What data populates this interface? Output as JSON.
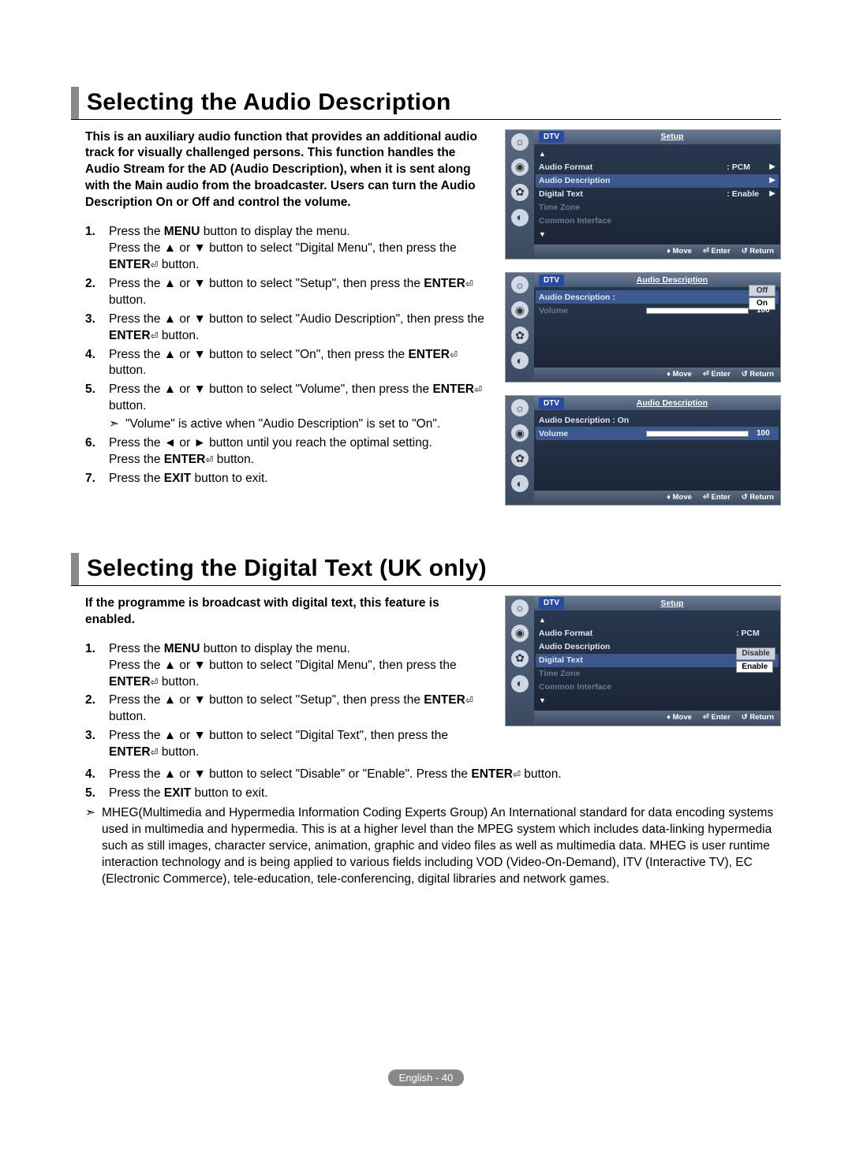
{
  "page_number": "English - 40",
  "sections": [
    {
      "title": "Selecting the Audio Description",
      "intro": "This is an auxiliary audio function that provides an additional audio track for visually challenged persons. This function handles the Audio Stream for the AD (Audio Description), when it is sent along with the Main audio from the broadcaster. Users can turn the Audio Description On or Off and control the volume.",
      "steps": [
        {
          "num": "1.",
          "lines": [
            "Press the <b>MENU</b> button to display the menu.",
            "Press the ▲ or ▼ button to select \"Digital Menu\", then press the <b>ENTER</b><enter> button."
          ]
        },
        {
          "num": "2.",
          "lines": [
            "Press the ▲ or ▼ button to select \"Setup\", then press the <b>ENTER</b><enter> button."
          ]
        },
        {
          "num": "3.",
          "lines": [
            "Press the ▲ or ▼ button to select \"Audio Description\", then press the <b>ENTER</b><enter> button."
          ]
        },
        {
          "num": "4.",
          "lines": [
            "Press the ▲ or ▼ button to select \"On\", then press the <b>ENTER</b><enter> button."
          ]
        },
        {
          "num": "5.",
          "lines": [
            "Press the ▲ or ▼ button to select \"Volume\", then press the <b>ENTER</b><enter> button."
          ],
          "note": "\"Volume\" is active when \"Audio Description\" is set to \"On\"."
        },
        {
          "num": "6.",
          "lines": [
            "Press the ◄ or ► button until you reach the optimal setting.",
            "Press the <b>ENTER</b><enter> button."
          ]
        },
        {
          "num": "7.",
          "lines": [
            "Press the <b>EXIT</b> button to exit."
          ]
        }
      ],
      "panels": [
        {
          "header": {
            "tag": "DTV",
            "title": "Setup"
          },
          "rows": [
            {
              "type": "tri",
              "dir": "up"
            },
            {
              "lbl": "Audio Format",
              "val": ": PCM",
              "arr": true
            },
            {
              "lbl": "Audio Description",
              "val": "",
              "arr": true,
              "hl": true
            },
            {
              "lbl": "Digital Text",
              "val": ": Enable",
              "arr": true
            },
            {
              "lbl": "Time Zone",
              "dim": true
            },
            {
              "lbl": "Common Interface",
              "dim": true
            },
            {
              "type": "tri",
              "dir": "down"
            }
          ],
          "footer": [
            "♦ Move",
            "⏎ Enter",
            "↺ Return"
          ]
        },
        {
          "header": {
            "tag": "DTV",
            "title": "Audio Description"
          },
          "rows": [
            {
              "lbl": "Audio Description :",
              "chips": [
                {
                  "t": "Off",
                  "sel": false
                },
                {
                  "t": "On",
                  "sel": true
                }
              ],
              "hl": true,
              "stacked": true
            },
            {
              "lbl": "Volume",
              "dim": true,
              "vol": 100
            }
          ],
          "footer": [
            "♦ Move",
            "⏎ Enter",
            "↺ Return"
          ]
        },
        {
          "header": {
            "tag": "DTV",
            "title": "Audio Description"
          },
          "rows": [
            {
              "lbl": "Audio Description : On"
            },
            {
              "lbl": "Volume",
              "hl": true,
              "vol": 100
            }
          ],
          "footer": [
            "♦ Move",
            "⏎ Enter",
            "↺ Return"
          ]
        }
      ]
    },
    {
      "title": "Selecting the Digital Text (UK only)",
      "intro": "If the programme is broadcast with digital text, this feature is enabled.",
      "steps": [
        {
          "num": "1.",
          "lines": [
            "Press the <b>MENU</b> button to display the menu.",
            "Press the ▲ or ▼ button to select \"Digital Menu\", then press the <b>ENTER</b><enter> button."
          ]
        },
        {
          "num": "2.",
          "lines": [
            "Press the ▲ or ▼ button to select \"Setup\", then press the <b>ENTER</b><enter> button."
          ]
        },
        {
          "num": "3.",
          "lines": [
            "Press the ▲ or ▼ button to select \"Digital Text\", then press the <b>ENTER</b><enter> button."
          ]
        },
        {
          "num": "4.",
          "lines": [
            "Press the ▲ or ▼ button to select \"Disable\" or \"Enable\". Press the <b>ENTER</b><enter> button."
          ],
          "full": true
        },
        {
          "num": "5.",
          "lines": [
            "Press the <b>EXIT</b> button to exit."
          ],
          "full": true
        }
      ],
      "end_note": "MHEG(Multimedia and Hypermedia Information Coding Experts Group) An International standard for data encoding systems used in multimedia and hypermedia. This is at a higher level than the MPEG system which includes data-linking hypermedia such as still images, character service, animation, graphic and video files as well as multimedia data. MHEG is user runtime interaction technology and is being applied to various fields including VOD (Video-On-Demand), ITV (Interactive TV), EC (Electronic Commerce), tele-education, tele-conferencing, digital libraries and network games.",
      "panels": [
        {
          "header": {
            "tag": "DTV",
            "title": "Setup"
          },
          "rows": [
            {
              "type": "tri",
              "dir": "up"
            },
            {
              "lbl": "Audio Format",
              "val": ": PCM"
            },
            {
              "lbl": "Audio Description"
            },
            {
              "lbl": "Digital Text",
              "hl": true,
              "chips": [
                {
                  "t": "Disable",
                  "sel": false
                },
                {
                  "t": "Enable",
                  "sel": true
                }
              ],
              "stacked": true
            },
            {
              "lbl": "Time Zone",
              "dim": true
            },
            {
              "lbl": "Common Interface",
              "dim": true
            },
            {
              "type": "tri",
              "dir": "down"
            }
          ],
          "footer": [
            "♦ Move",
            "⏎ Enter",
            "↺ Return"
          ]
        }
      ]
    }
  ]
}
